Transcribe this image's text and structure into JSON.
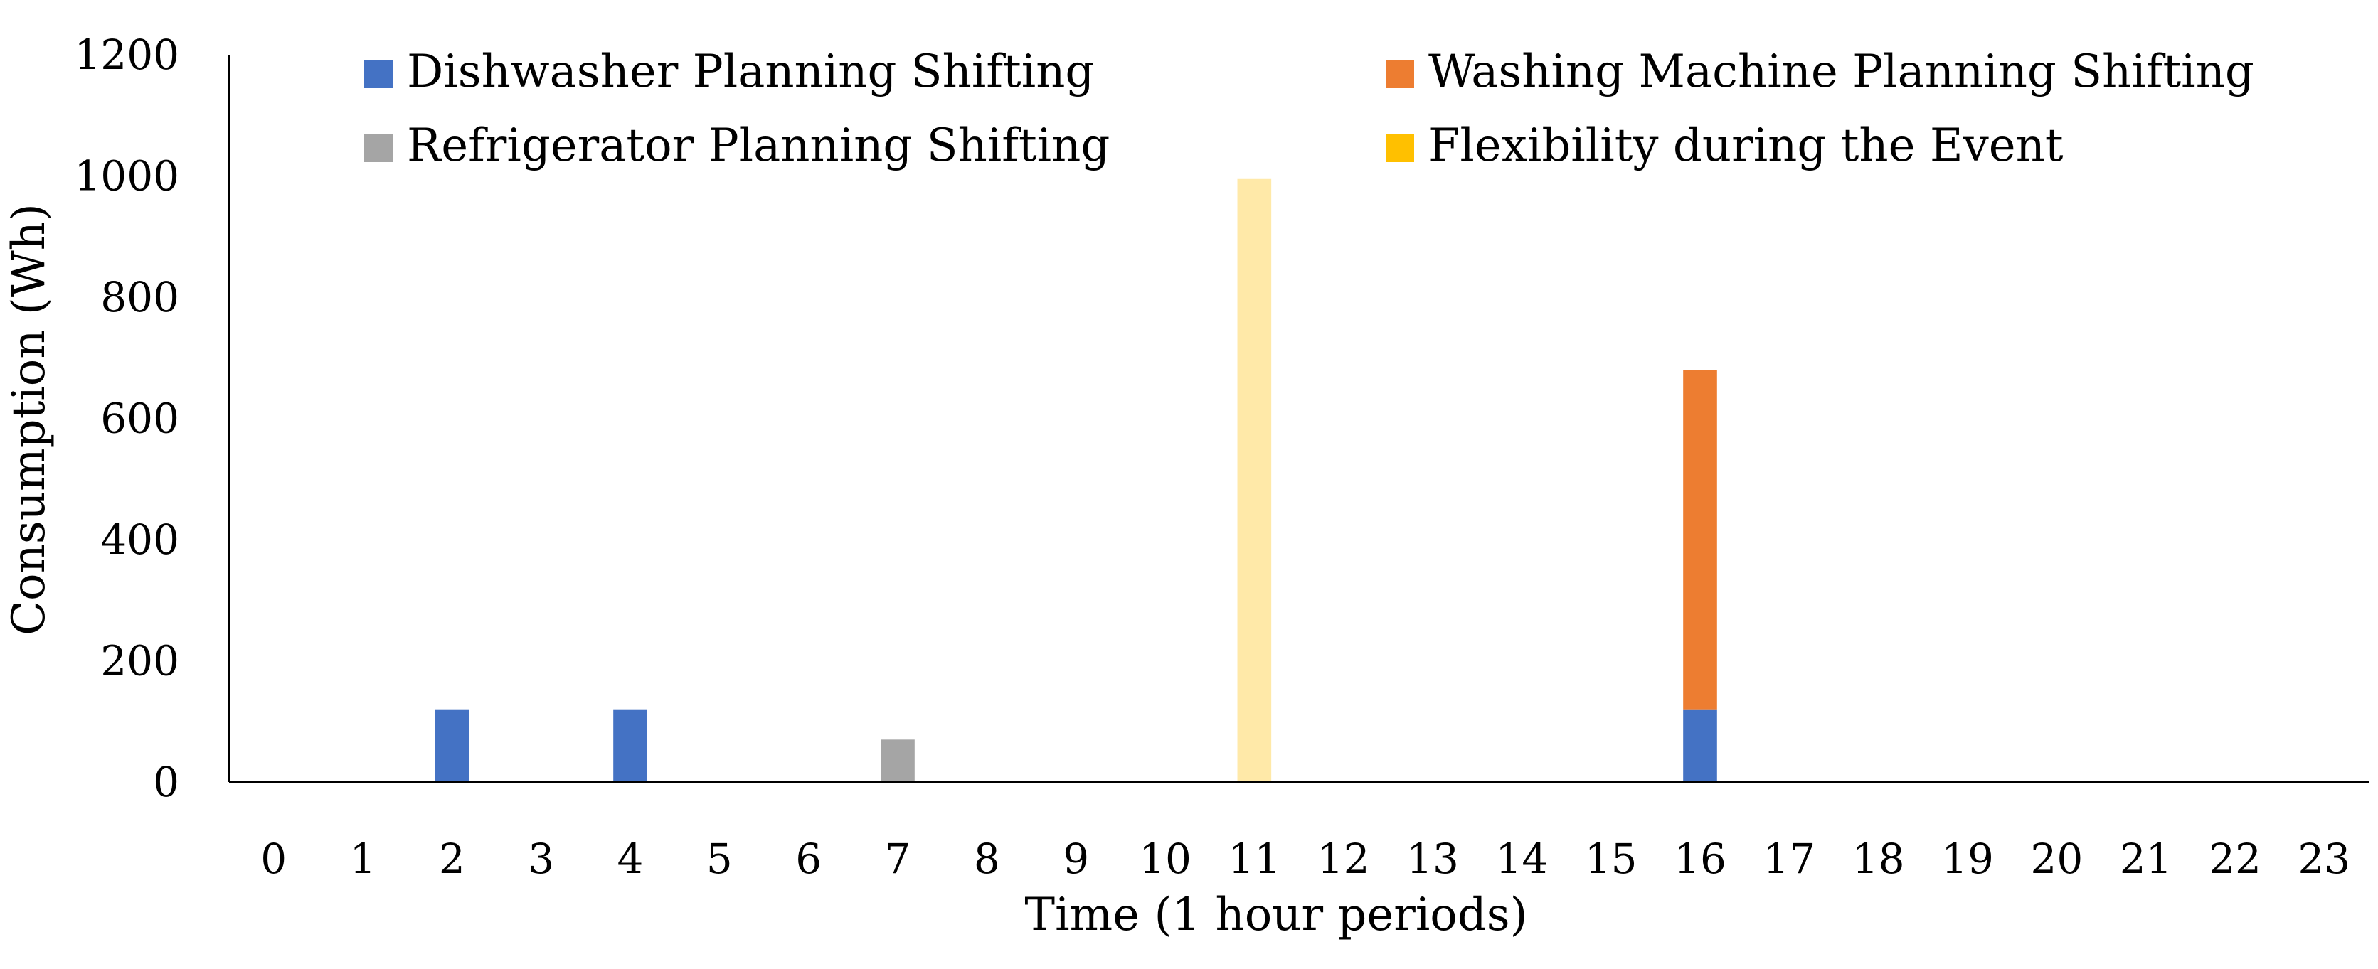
{
  "chart_data": {
    "type": "bar",
    "stacked": true,
    "title": "",
    "xlabel": "Time (1 hour periods)",
    "ylabel": "Consumption (Wh)",
    "ylim": [
      0,
      1200
    ],
    "yticks": [
      0,
      200,
      400,
      600,
      800,
      1000,
      1200
    ],
    "categories": [
      "0",
      "1",
      "2",
      "3",
      "4",
      "5",
      "6",
      "7",
      "8",
      "9",
      "10",
      "11",
      "12",
      "13",
      "14",
      "15",
      "16",
      "17",
      "18",
      "19",
      "20",
      "21",
      "22",
      "23"
    ],
    "series": [
      {
        "name": "Dishwasher Planning Shifting",
        "color": "#4472C4",
        "values": [
          0,
          0,
          120,
          0,
          120,
          0,
          0,
          0,
          0,
          0,
          0,
          0,
          0,
          0,
          0,
          0,
          120,
          0,
          0,
          0,
          0,
          0,
          0,
          0
        ]
      },
      {
        "name": "Washing Machine Planning Shifting",
        "color": "#ED7D31",
        "values": [
          0,
          0,
          0,
          0,
          0,
          0,
          0,
          0,
          0,
          0,
          0,
          0,
          0,
          0,
          0,
          0,
          560,
          0,
          0,
          0,
          0,
          0,
          0,
          0
        ]
      },
      {
        "name": "Refrigerator Planning Shifting",
        "color": "#A5A5A5",
        "values": [
          0,
          0,
          0,
          0,
          0,
          0,
          0,
          70,
          0,
          0,
          0,
          0,
          0,
          0,
          0,
          0,
          0,
          0,
          0,
          0,
          0,
          0,
          0,
          0
        ]
      },
      {
        "name": "Flexibility during the Event",
        "color": "#FFC000",
        "display_color": "#FFE9A8",
        "values": [
          0,
          0,
          0,
          0,
          0,
          0,
          0,
          0,
          0,
          0,
          0,
          995,
          0,
          0,
          0,
          0,
          0,
          0,
          0,
          0,
          0,
          0,
          0,
          0
        ]
      }
    ],
    "grid": false,
    "legend_position": "top"
  }
}
